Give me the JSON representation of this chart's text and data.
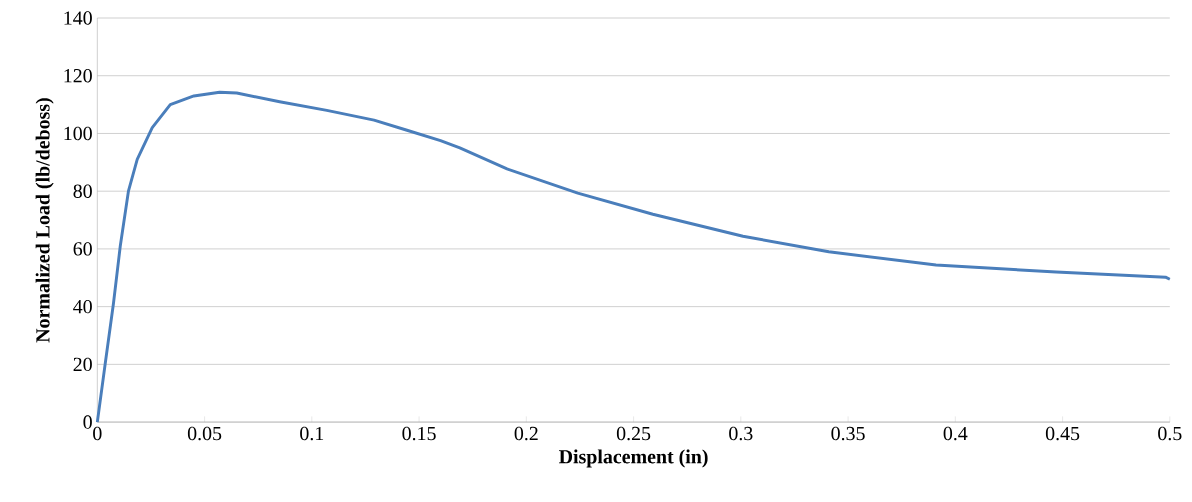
{
  "chart_data": {
    "type": "line",
    "xlabel": "Displacement (in)",
    "ylabel": "Normalized  Load (lb/deboss)",
    "xlim": [
      0,
      0.5
    ],
    "ylim": [
      0,
      140
    ],
    "xticks": [
      0,
      0.05,
      0.1,
      0.15,
      0.2,
      0.25,
      0.3,
      0.35,
      0.4,
      0.45,
      0.5
    ],
    "yticks": [
      0,
      20,
      40,
      60,
      80,
      100,
      120,
      140
    ],
    "grid": "y",
    "marker": "none",
    "line_style": "solid",
    "x": [
      0,
      0.0037,
      0.0075,
      0.0107,
      0.0145,
      0.0186,
      0.0256,
      0.034,
      0.045,
      0.057,
      0.065,
      0.085,
      0.107,
      0.129,
      0.144,
      0.16,
      0.169,
      0.191,
      0.224,
      0.259,
      0.301,
      0.341,
      0.391,
      0.447,
      0.498,
      0.5
    ],
    "series": [
      {
        "color": "#4a7ebb",
        "values": [
          0,
          20.4,
          41,
          61,
          80,
          91,
          102,
          110,
          113,
          114.3,
          114,
          111,
          108,
          104.6,
          101.2,
          97.5,
          95,
          87.7,
          79.3,
          72,
          64.4,
          59,
          54.4,
          52,
          50.2,
          49.5
        ]
      }
    ]
  }
}
